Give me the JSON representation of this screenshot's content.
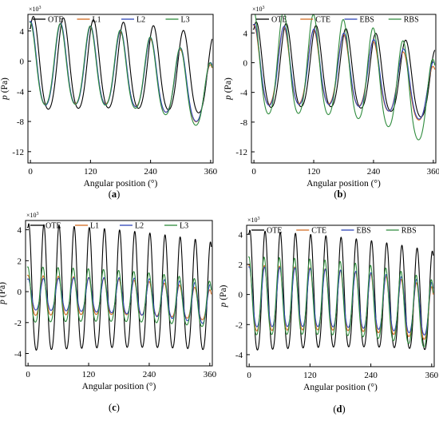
{
  "figure": {
    "panels": [
      {
        "caption_letter": "a",
        "multiplier_base": "×10",
        "multiplier_exp": "3",
        "xlabel": "Angular position (°)",
        "ylabel_symbol": "p",
        "ylabel_unit": " (Pa)"
      },
      {
        "caption_letter": "b",
        "multiplier_base": "×10",
        "multiplier_exp": "3",
        "xlabel": "Angular position (°)",
        "ylabel_symbol": "p",
        "ylabel_unit": " (Pa)"
      },
      {
        "caption_letter": "c",
        "multiplier_base": "×10",
        "multiplier_exp": "3",
        "xlabel": "Angular position (°)",
        "ylabel_symbol": "p",
        "ylabel_unit": " (Pa)"
      },
      {
        "caption_letter": "d",
        "multiplier_base": "×10",
        "multiplier_exp": "3",
        "xlabel": "Angular position (°)",
        "ylabel_symbol": "p",
        "ylabel_unit": " (Pa)"
      }
    ]
  },
  "chart_data": [
    {
      "type": "line",
      "panel": "a",
      "title": "",
      "xlabel": "Angular position (°)",
      "ylabel": "p (Pa)",
      "y_multiplier": "×10³",
      "xlim": [
        -5,
        365
      ],
      "ylim": [
        -13.5,
        6.2
      ],
      "xticks": [
        0,
        120,
        240,
        360
      ],
      "yticks": [
        -12,
        -8,
        -4,
        0,
        4
      ],
      "legend": [
        "OTE",
        "L1",
        "L2",
        "L3"
      ],
      "legend_position": "top",
      "grid": false,
      "series": [
        {
          "name": "OTE",
          "color": "#000000",
          "cycles": 6,
          "phase_deg": 35,
          "offset": -1.0,
          "amp_start": 6.2,
          "amp_end": 5.2,
          "drift": -1.5,
          "y_approx": "oscillates about −1, peaks ≈ +5.6 near 20°, troughs ≈ −7 to −8.5"
        },
        {
          "name": "L1",
          "color": "#d2691e",
          "cycles": 6,
          "phase_deg": 0,
          "offset": -1.0,
          "amp_start": 5.5,
          "amp_end": 4.2,
          "drift": -4.2,
          "y_approx": "peaks ≈ +4.5, deepest trough ≈ −9.5 near 340°"
        },
        {
          "name": "L2",
          "color": "#2e44b8",
          "cycles": 6,
          "phase_deg": 2,
          "offset": -1.0,
          "amp_start": 5.6,
          "amp_end": 4.3,
          "drift": -4.0,
          "y_approx": "peaks ≈ +4.8, deepest trough ≈ −9.7 near 340°"
        },
        {
          "name": "L3",
          "color": "#2e8b3c",
          "cycles": 6,
          "phase_deg": -3,
          "offset": -1.0,
          "amp_start": 5.5,
          "amp_end": 4.6,
          "drift": -4.4,
          "y_approx": "peaks ≈ +4.4, deepest trough ≈ −10 near 345°"
        }
      ]
    },
    {
      "type": "line",
      "panel": "b",
      "title": "",
      "xlabel": "Angular position (°)",
      "ylabel": "p (Pa)",
      "y_multiplier": "×10³",
      "xlim": [
        -5,
        365
      ],
      "ylim": [
        -13.5,
        6.5
      ],
      "xticks": [
        0,
        120,
        240,
        360
      ],
      "yticks": [
        -12,
        -8,
        -4,
        0,
        4
      ],
      "legend": [
        "OTE",
        "CTE",
        "EBS",
        "RBS"
      ],
      "legend_position": "top",
      "grid": false,
      "series": [
        {
          "name": "OTE",
          "color": "#000000",
          "cycles": 6,
          "phase_deg": 28,
          "offset": -1.0,
          "amp_start": 5.8,
          "amp_end": 4.8,
          "drift": -2.5,
          "y_approx": "peaks ≈ +5, troughs ≈ −6 to −8"
        },
        {
          "name": "CTE",
          "color": "#d2691e",
          "cycles": 6,
          "phase_deg": 0,
          "offset": -1.0,
          "amp_start": 5.4,
          "amp_end": 4.0,
          "drift": -4.0,
          "y_approx": "peaks ≈ +4.5, deepest trough ≈ −9 near 345°"
        },
        {
          "name": "EBS",
          "color": "#2e44b8",
          "cycles": 6,
          "phase_deg": 4,
          "offset": -1.0,
          "amp_start": 5.5,
          "amp_end": 4.2,
          "drift": -3.6,
          "y_approx": "peaks ≈ +4.5, deepest trough ≈ −8.8 near 345°"
        },
        {
          "name": "RBS",
          "color": "#2e8b3c",
          "cycles": 6,
          "phase_deg": -4,
          "offset": -0.8,
          "amp_start": 7.0,
          "amp_end": 6.0,
          "drift": -5.5,
          "y_approx": "peaks ≈ +6, deepest trough ≈ −11.8 near 345°"
        }
      ]
    },
    {
      "type": "line",
      "panel": "c",
      "title": "",
      "xlabel": "Angular position (°)",
      "ylabel": "p (Pa)",
      "y_multiplier": "×10³",
      "xlim": [
        -5,
        365
      ],
      "ylim": [
        -4.8,
        4.6
      ],
      "xticks": [
        0,
        120,
        240,
        360
      ],
      "yticks": [
        -4,
        -2,
        0,
        2,
        4
      ],
      "legend": [
        "OTE",
        "L1",
        "L2",
        "L3"
      ],
      "legend_position": "top",
      "grid": false,
      "series": [
        {
          "name": "OTE",
          "color": "#000000",
          "cycles": 12,
          "phase_deg": 16,
          "offset": -0.2,
          "amp_start": 4.1,
          "amp_end": 3.5,
          "drift": -0.5,
          "y_approx": "peaks ≈ +4, troughs ≈ −4.3"
        },
        {
          "name": "L1",
          "color": "#d2691e",
          "cycles": 12,
          "phase_deg": 0,
          "offset": -0.4,
          "amp_start": 1.3,
          "amp_end": 1.0,
          "drift": -0.6,
          "y_approx": "±1.3 about −0.4"
        },
        {
          "name": "L2",
          "color": "#2e44b8",
          "cycles": 12,
          "phase_deg": 5,
          "offset": -0.3,
          "amp_start": 1.0,
          "amp_end": 1.3,
          "drift": -0.7,
          "y_approx": "±1.2 about −0.3"
        },
        {
          "name": "L3",
          "color": "#2e8b3c",
          "cycles": 12,
          "phase_deg": -7,
          "offset": -0.4,
          "amp_start": 1.8,
          "amp_end": 1.5,
          "drift": -0.6,
          "y_approx": "peaks ≈ +1.7, troughs ≈ −2.3"
        }
      ]
    },
    {
      "type": "line",
      "panel": "d",
      "title": "",
      "xlabel": "Angular position (°)",
      "ylabel": "p (Pa)",
      "y_multiplier": "×10³",
      "xlim": [
        -5,
        365
      ],
      "ylim": [
        -4.8,
        4.6
      ],
      "xticks": [
        0,
        120,
        240,
        360
      ],
      "yticks": [
        -4,
        -2,
        0,
        2,
        4
      ],
      "legend": [
        "OTE",
        "CTE",
        "EBS",
        "RBS"
      ],
      "legend_position": "top",
      "grid": false,
      "series": [
        {
          "name": "OTE",
          "color": "#000000",
          "cycles": 12,
          "phase_deg": 16,
          "offset": -0.2,
          "amp_start": 4.0,
          "amp_end": 3.3,
          "drift": -0.6,
          "y_approx": "peaks ≈ +4, troughs ≈ −4.2"
        },
        {
          "name": "CTE",
          "color": "#d2691e",
          "cycles": 12,
          "phase_deg": 0,
          "offset": -0.5,
          "amp_start": 2.2,
          "amp_end": 1.8,
          "drift": -1.0,
          "y_approx": "peaks ≈ +1.8, troughs ≈ −3.2"
        },
        {
          "name": "EBS",
          "color": "#2e44b8",
          "cycles": 12,
          "phase_deg": 4,
          "offset": -0.4,
          "amp_start": 2.0,
          "amp_end": 1.8,
          "drift": -0.8,
          "y_approx": "peaks ≈ +1.9, troughs ≈ −2.6"
        },
        {
          "name": "RBS",
          "color": "#2e8b3c",
          "cycles": 12,
          "phase_deg": -6,
          "offset": -0.4,
          "amp_start": 2.6,
          "amp_end": 2.3,
          "drift": -1.2,
          "y_approx": "peaks ≈ +2.5, troughs ≈ −3.8"
        }
      ]
    }
  ]
}
